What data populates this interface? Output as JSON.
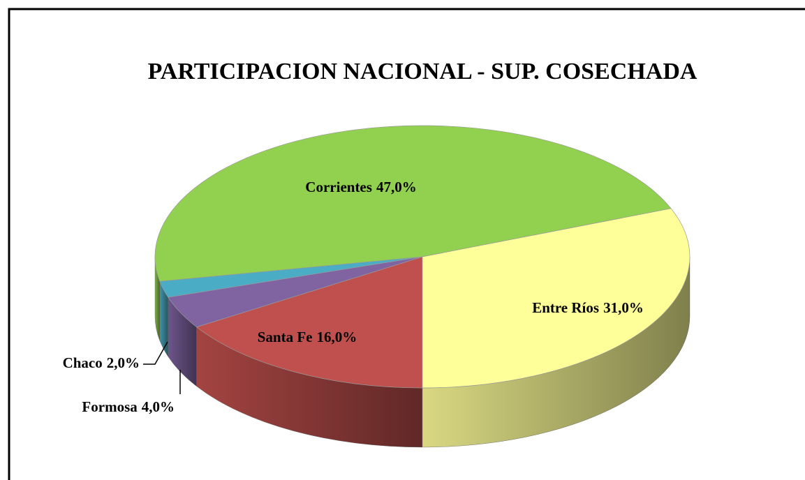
{
  "chart_data": {
    "type": "pie3d",
    "title": "PARTICIPACION NACIONAL - SUP. COSECHADA",
    "categories": [
      "Santa Fe",
      "Formosa",
      "Chaco",
      "Corrientes",
      "Entre Ríos"
    ],
    "values": [
      16,
      4,
      2,
      47,
      31
    ],
    "value_labels": [
      "16,0%",
      "4,0%",
      "2,0%",
      "47,0%",
      "31,0%"
    ],
    "colors": [
      "#c0504d",
      "#8064a2",
      "#4bacc6",
      "#92d050",
      "#ffff99"
    ]
  }
}
